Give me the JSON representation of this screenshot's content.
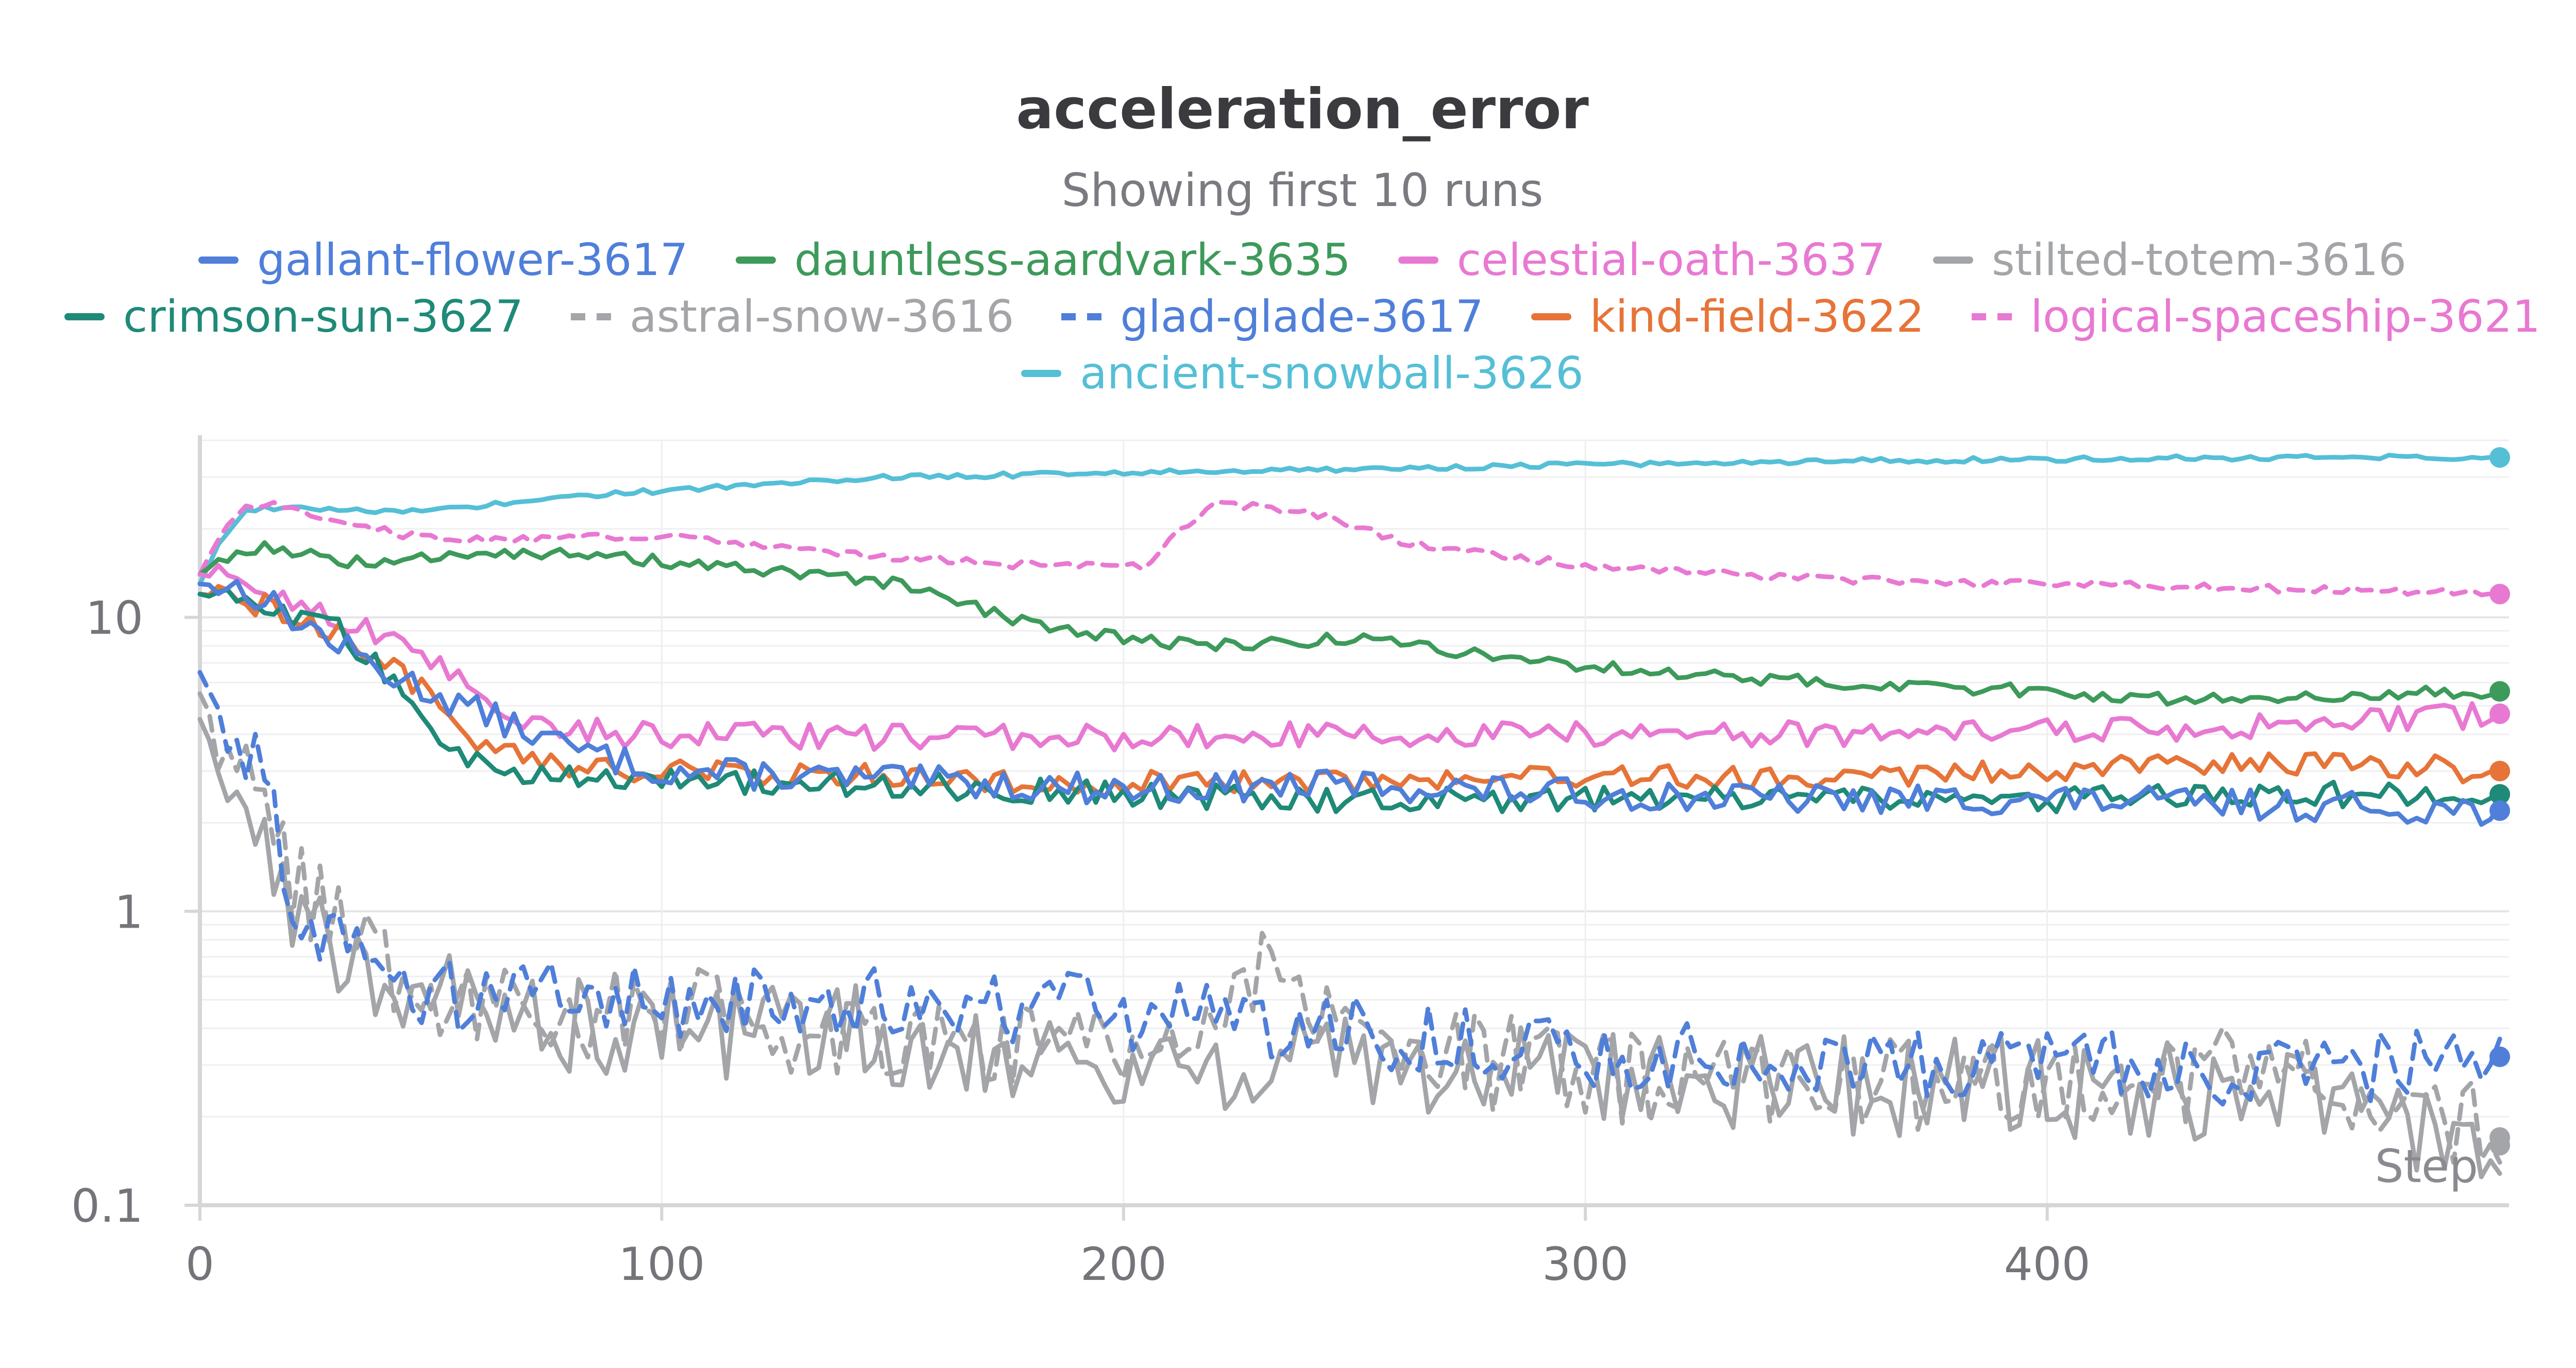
{
  "chart_data": {
    "type": "line",
    "title": "acceleration_error",
    "subtitle": "Showing first 10 runs",
    "xlabel": "Step",
    "ylabel": "",
    "y_scale": "log",
    "xlim": [
      0,
      500
    ],
    "ylim": [
      0.1,
      40
    ],
    "x_ticks": [
      0,
      100,
      200,
      300,
      400
    ],
    "y_ticks": [
      0.1,
      1,
      10
    ],
    "y_tick_labels": [
      "0.1",
      "1",
      "10"
    ],
    "grid": true,
    "legend_position": "top",
    "series": [
      {
        "name": "gallant-flower-3617",
        "color": "#4f7fd9",
        "dash": false,
        "noise": 0.12,
        "points": [
          [
            0,
            13
          ],
          [
            10,
            12.5
          ],
          [
            20,
            10
          ],
          [
            40,
            6.5
          ],
          [
            60,
            4.8
          ],
          [
            80,
            3.6
          ],
          [
            100,
            3.0
          ],
          [
            150,
            2.8
          ],
          [
            200,
            2.6
          ],
          [
            250,
            2.7
          ],
          [
            300,
            2.5
          ],
          [
            350,
            2.4
          ],
          [
            400,
            2.4
          ],
          [
            450,
            2.3
          ],
          [
            500,
            2.2
          ]
        ]
      },
      {
        "name": "dauntless-aardvark-3635",
        "color": "#3d9a5a",
        "dash": false,
        "noise": 0.05,
        "points": [
          [
            0,
            14
          ],
          [
            5,
            16
          ],
          [
            15,
            17.5
          ],
          [
            25,
            16
          ],
          [
            40,
            15
          ],
          [
            60,
            17
          ],
          [
            100,
            15.5
          ],
          [
            150,
            13
          ],
          [
            180,
            9.5
          ],
          [
            200,
            8.5
          ],
          [
            220,
            8
          ],
          [
            250,
            8.5
          ],
          [
            300,
            6.8
          ],
          [
            350,
            6.0
          ],
          [
            400,
            5.6
          ],
          [
            430,
            5.2
          ],
          [
            450,
            5.4
          ],
          [
            500,
            5.6
          ]
        ]
      },
      {
        "name": "celestial-oath-3637",
        "color": "#e879d2",
        "dash": false,
        "noise": 0.1,
        "points": [
          [
            0,
            14
          ],
          [
            10,
            13
          ],
          [
            30,
            10
          ],
          [
            50,
            7
          ],
          [
            70,
            4.5
          ],
          [
            90,
            4.0
          ],
          [
            110,
            4.0
          ],
          [
            150,
            3.9
          ],
          [
            200,
            3.9
          ],
          [
            250,
            4.0
          ],
          [
            300,
            4.0
          ],
          [
            350,
            4.0
          ],
          [
            400,
            4.1
          ],
          [
            450,
            4.3
          ],
          [
            500,
            4.7
          ]
        ]
      },
      {
        "name": "stilted-totem-3616",
        "color": "#a3a5a8",
        "dash": false,
        "noise": 0.4,
        "points": [
          [
            0,
            4.5
          ],
          [
            5,
            3.0
          ],
          [
            10,
            2.0
          ],
          [
            20,
            1.0
          ],
          [
            40,
            0.6
          ],
          [
            60,
            0.45
          ],
          [
            100,
            0.4
          ],
          [
            150,
            0.38
          ],
          [
            200,
            0.3
          ],
          [
            250,
            0.3
          ],
          [
            300,
            0.28
          ],
          [
            350,
            0.26
          ],
          [
            400,
            0.25
          ],
          [
            450,
            0.24
          ],
          [
            500,
            0.16
          ]
        ]
      },
      {
        "name": "crimson-sun-3627",
        "color": "#1e8a77",
        "dash": false,
        "noise": 0.1,
        "points": [
          [
            0,
            12
          ],
          [
            10,
            11
          ],
          [
            30,
            9
          ],
          [
            45,
            5.5
          ],
          [
            55,
            3.3
          ],
          [
            70,
            3.0
          ],
          [
            100,
            2.8
          ],
          [
            150,
            2.7
          ],
          [
            200,
            2.5
          ],
          [
            250,
            2.4
          ],
          [
            300,
            2.4
          ],
          [
            350,
            2.4
          ],
          [
            400,
            2.4
          ],
          [
            450,
            2.5
          ],
          [
            500,
            2.5
          ]
        ]
      },
      {
        "name": "astral-snow-3616",
        "color": "#a3a5a8",
        "dash": true,
        "noise": 0.4,
        "points": [
          [
            0,
            5.5
          ],
          [
            5,
            3.8
          ],
          [
            10,
            2.5
          ],
          [
            20,
            1.2
          ],
          [
            40,
            0.65
          ],
          [
            60,
            0.5
          ],
          [
            100,
            0.45
          ],
          [
            150,
            0.4
          ],
          [
            200,
            0.35
          ],
          [
            230,
            0.6
          ],
          [
            250,
            0.35
          ],
          [
            300,
            0.28
          ],
          [
            350,
            0.25
          ],
          [
            400,
            0.25
          ],
          [
            450,
            0.3
          ],
          [
            500,
            0.17
          ]
        ]
      },
      {
        "name": "glad-glade-3617",
        "color": "#4f7fd9",
        "dash": true,
        "noise": 0.3,
        "points": [
          [
            0,
            6.5
          ],
          [
            5,
            4.5
          ],
          [
            10,
            3.5
          ],
          [
            15,
            2.8
          ],
          [
            20,
            1.1
          ],
          [
            40,
            0.6
          ],
          [
            60,
            0.5
          ],
          [
            100,
            0.5
          ],
          [
            150,
            0.5
          ],
          [
            200,
            0.45
          ],
          [
            250,
            0.4
          ],
          [
            300,
            0.32
          ],
          [
            350,
            0.3
          ],
          [
            400,
            0.3
          ],
          [
            450,
            0.28
          ],
          [
            500,
            0.32
          ]
        ]
      },
      {
        "name": "kind-field-3622",
        "color": "#e67438",
        "dash": false,
        "noise": 0.1,
        "points": [
          [
            0,
            12
          ],
          [
            10,
            11.5
          ],
          [
            30,
            9
          ],
          [
            50,
            5.5
          ],
          [
            60,
            3.5
          ],
          [
            80,
            3.1
          ],
          [
            100,
            3.0
          ],
          [
            150,
            2.9
          ],
          [
            200,
            2.7
          ],
          [
            250,
            2.8
          ],
          [
            300,
            2.8
          ],
          [
            350,
            2.9
          ],
          [
            400,
            3.0
          ],
          [
            450,
            3.2
          ],
          [
            500,
            3.0
          ]
        ]
      },
      {
        "name": "logical-spaceship-3621",
        "color": "#e879d2",
        "dash": true,
        "noise": 0.03,
        "points": [
          [
            0,
            14
          ],
          [
            5,
            20
          ],
          [
            10,
            24
          ],
          [
            20,
            24
          ],
          [
            30,
            21
          ],
          [
            45,
            19
          ],
          [
            60,
            18.5
          ],
          [
            80,
            18.5
          ],
          [
            100,
            19
          ],
          [
            120,
            17.5
          ],
          [
            150,
            16
          ],
          [
            180,
            15
          ],
          [
            205,
            14.8
          ],
          [
            210,
            19
          ],
          [
            220,
            24
          ],
          [
            230,
            24
          ],
          [
            245,
            22
          ],
          [
            260,
            18
          ],
          [
            300,
            15
          ],
          [
            350,
            13.5
          ],
          [
            400,
            13
          ],
          [
            450,
            12.5
          ],
          [
            500,
            12
          ]
        ]
      },
      {
        "name": "ancient-snowball-3626",
        "color": "#55bfd6",
        "dash": false,
        "noise": 0.02,
        "points": [
          [
            0,
            13
          ],
          [
            5,
            19
          ],
          [
            10,
            23
          ],
          [
            20,
            24
          ],
          [
            30,
            23
          ],
          [
            50,
            23
          ],
          [
            70,
            25
          ],
          [
            100,
            27
          ],
          [
            150,
            30
          ],
          [
            200,
            31
          ],
          [
            250,
            32
          ],
          [
            300,
            33
          ],
          [
            350,
            34
          ],
          [
            400,
            34.5
          ],
          [
            450,
            35
          ],
          [
            500,
            35
          ]
        ]
      }
    ]
  },
  "legend_rows": [
    [
      0,
      1,
      2,
      3
    ],
    [
      4,
      5,
      6,
      7,
      8
    ],
    [
      9
    ]
  ]
}
